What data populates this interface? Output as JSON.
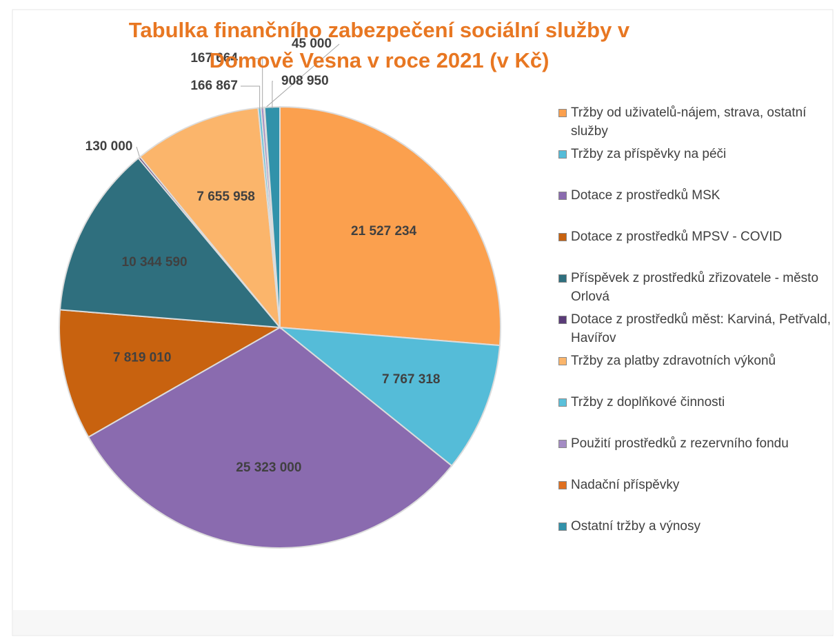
{
  "chart_data": {
    "type": "pie",
    "title": "Tabulka finančního zabezpečení sociální služby v Domově Vesna v roce 2021 (v Kč)",
    "categories": [
      "Tržby od uživatelů-nájem, strava, ostatní služby",
      "Tržby za příspěvky na péči",
      "Dotace z prostředků MSK",
      "Dotace z prostředků MPSV - COVID",
      "Příspěvek z prostředků zřizovatele - město Orlová",
      "Dotace z prostředků měst: Karviná, Petřvald, Havířov",
      "Tržby za platby zdravotních výkonů",
      "Tržby z doplňkové činnosti",
      "Použití prostředků z rezervního fondu",
      "Nadační příspěvky",
      "Ostatní tržby a výnosy"
    ],
    "values": [
      21527234,
      7767318,
      25323000,
      7819010,
      10344590,
      130000,
      7655958,
      166867,
      167664,
      45000,
      908950
    ],
    "value_labels": [
      "21 527 234",
      "7 767 318",
      "25 323 000",
      "7 819 010",
      "10 344 590",
      "130 000",
      "7 655 958",
      "166 867",
      "167 664",
      "45 000",
      "908 950"
    ],
    "colors": [
      "#fba04e",
      "#55bcd8",
      "#8a6baf",
      "#c8620f",
      "#2f6f7e",
      "#5a3c78",
      "#fbb56b",
      "#5ac0da",
      "#a48cc4",
      "#e07020",
      "#3192aa"
    ],
    "legend": "right"
  }
}
